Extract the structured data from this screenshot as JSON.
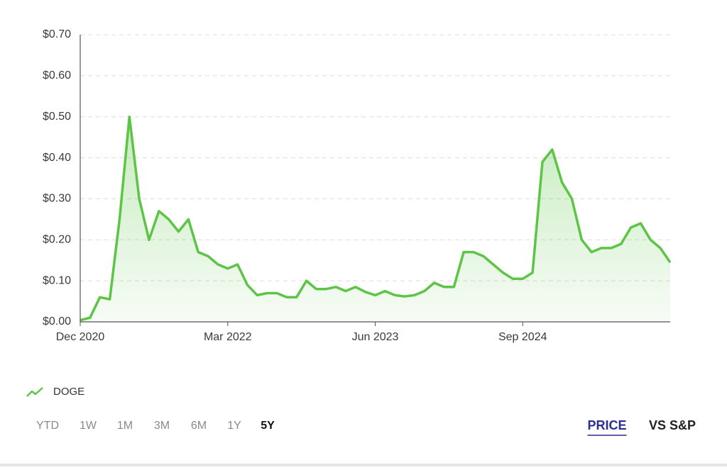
{
  "chart_data": {
    "type": "line",
    "x": [
      "2020-12",
      "2021-01",
      "2021-02",
      "2021-03",
      "2021-04",
      "2021-05",
      "2021-06",
      "2021-07",
      "2021-08",
      "2021-09",
      "2021-10",
      "2021-11",
      "2021-12",
      "2022-01",
      "2022-02",
      "2022-03",
      "2022-04",
      "2022-05",
      "2022-06",
      "2022-07",
      "2022-08",
      "2022-09",
      "2022-10",
      "2022-11",
      "2022-12",
      "2023-01",
      "2023-02",
      "2023-03",
      "2023-04",
      "2023-05",
      "2023-06",
      "2023-07",
      "2023-08",
      "2023-09",
      "2023-10",
      "2023-11",
      "2023-12",
      "2024-01",
      "2024-02",
      "2024-03",
      "2024-04",
      "2024-05",
      "2024-06",
      "2024-07",
      "2024-08",
      "2024-09",
      "2024-10",
      "2024-11",
      "2024-12",
      "2025-01",
      "2025-02",
      "2025-03",
      "2025-04",
      "2025-05",
      "2025-06",
      "2025-07",
      "2025-08",
      "2025-09",
      "2025-10",
      "2025-11",
      "2025-12"
    ],
    "series": [
      {
        "name": "DOGE",
        "color": "#5cc545",
        "values": [
          0.004,
          0.01,
          0.06,
          0.055,
          0.25,
          0.5,
          0.3,
          0.2,
          0.27,
          0.25,
          0.22,
          0.25,
          0.17,
          0.16,
          0.14,
          0.13,
          0.14,
          0.09,
          0.065,
          0.07,
          0.07,
          0.06,
          0.06,
          0.1,
          0.08,
          0.08,
          0.085,
          0.075,
          0.085,
          0.073,
          0.065,
          0.075,
          0.065,
          0.062,
          0.065,
          0.075,
          0.095,
          0.085,
          0.085,
          0.17,
          0.17,
          0.16,
          0.14,
          0.12,
          0.105,
          0.105,
          0.12,
          0.39,
          0.42,
          0.34,
          0.3,
          0.2,
          0.17,
          0.18,
          0.18,
          0.19,
          0.23,
          0.24,
          0.2,
          0.18,
          0.145
        ]
      }
    ],
    "xlim": [
      "2020-12",
      "2025-12"
    ],
    "xticks": [
      {
        "value": "2020-12",
        "label": "Dec 2020"
      },
      {
        "value": "2022-03",
        "label": "Mar 2022"
      },
      {
        "value": "2023-06",
        "label": "Jun 2023"
      },
      {
        "value": "2024-09",
        "label": "Sep 2024"
      }
    ],
    "ylim": [
      0,
      0.7
    ],
    "yticks": [
      {
        "value": 0,
        "label": "$0.00"
      },
      {
        "value": 0.1,
        "label": "$0.10"
      },
      {
        "value": 0.2,
        "label": "$0.20"
      },
      {
        "value": 0.3,
        "label": "$0.30"
      },
      {
        "value": 0.4,
        "label": "$0.40"
      },
      {
        "value": 0.5,
        "label": "$0.50"
      },
      {
        "value": 0.6,
        "label": "$0.60"
      },
      {
        "value": 0.7,
        "label": "$0.70"
      }
    ],
    "grid": true,
    "area_fill": true
  },
  "range_buttons": [
    "YTD",
    "1W",
    "1M",
    "3M",
    "6M",
    "1Y",
    "5Y"
  ],
  "selected_range_index": 6,
  "view_tabs": [
    "PRICE",
    "VS S&P"
  ],
  "selected_tab_index": 0
}
